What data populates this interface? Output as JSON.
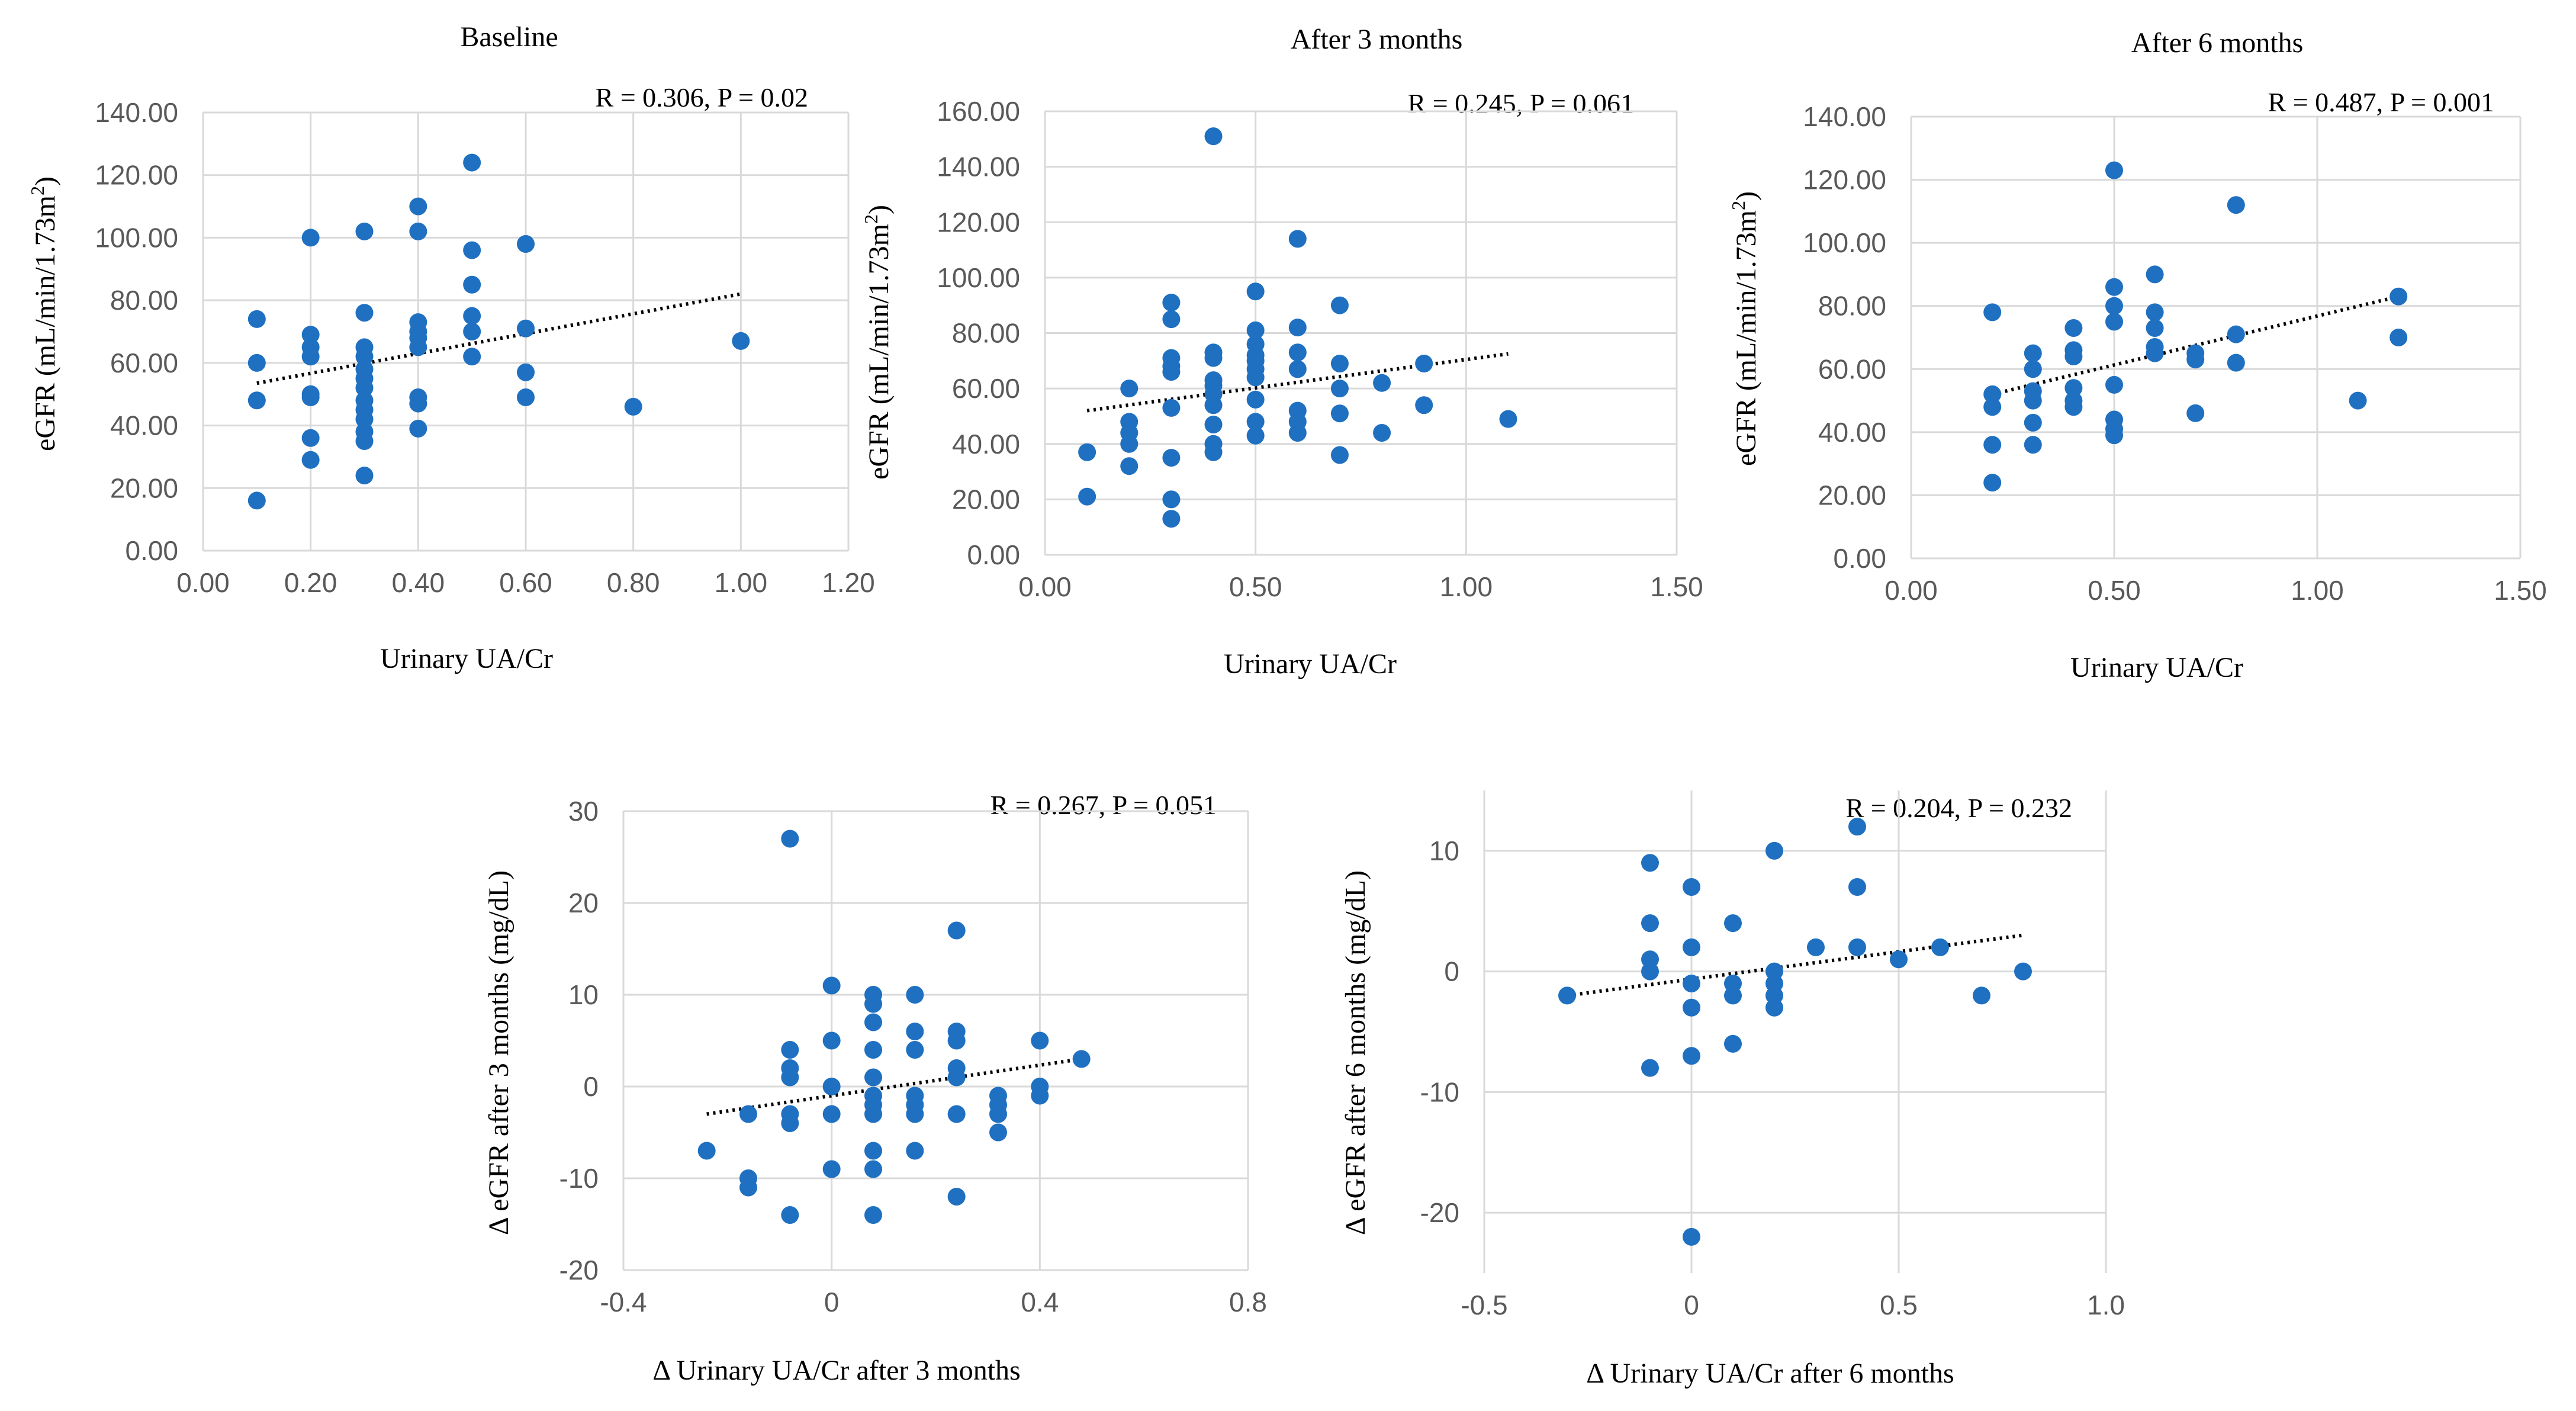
{
  "chart_data": [
    {
      "type": "scatter",
      "title": "Baseline",
      "stat": "R = 0.306, P = 0.02",
      "xlabel": "Urinary UA/Cr",
      "ylabel_main": "eGFR (mL/min/1.73m",
      "ylabel_sup": "2",
      "ylabel_end": ")",
      "xlim": [
        0,
        1.2
      ],
      "ylim": [
        0,
        140
      ],
      "xticks": [
        0,
        0.2,
        0.4,
        0.6,
        0.8,
        1.0,
        1.2
      ],
      "yticks": [
        0,
        20,
        40,
        60,
        80,
        100,
        120,
        140
      ],
      "xtick_labels": [
        "0.00",
        "0.20",
        "0.40",
        "0.60",
        "0.80",
        "1.00",
        "1.20"
      ],
      "ytick_labels": [
        "0.00",
        "20.00",
        "40.00",
        "60.00",
        "80.00",
        "100.00",
        "120.00",
        "140.00"
      ],
      "trendline": [
        [
          0.1,
          53.5
        ],
        [
          1.0,
          82
        ]
      ],
      "points": [
        [
          0.1,
          74
        ],
        [
          0.1,
          60
        ],
        [
          0.1,
          48
        ],
        [
          0.1,
          16
        ],
        [
          0.2,
          100
        ],
        [
          0.2,
          69
        ],
        [
          0.2,
          65
        ],
        [
          0.2,
          62
        ],
        [
          0.2,
          50
        ],
        [
          0.2,
          49
        ],
        [
          0.2,
          36
        ],
        [
          0.2,
          29
        ],
        [
          0.3,
          102
        ],
        [
          0.3,
          76
        ],
        [
          0.3,
          65
        ],
        [
          0.3,
          62
        ],
        [
          0.3,
          58
        ],
        [
          0.3,
          55
        ],
        [
          0.3,
          52
        ],
        [
          0.3,
          48
        ],
        [
          0.3,
          45
        ],
        [
          0.3,
          42
        ],
        [
          0.3,
          38
        ],
        [
          0.3,
          35
        ],
        [
          0.3,
          24
        ],
        [
          0.4,
          110
        ],
        [
          0.4,
          102
        ],
        [
          0.4,
          73
        ],
        [
          0.4,
          70
        ],
        [
          0.4,
          68
        ],
        [
          0.4,
          65
        ],
        [
          0.4,
          49
        ],
        [
          0.4,
          47
        ],
        [
          0.4,
          39
        ],
        [
          0.5,
          124
        ],
        [
          0.5,
          96
        ],
        [
          0.5,
          85
        ],
        [
          0.5,
          75
        ],
        [
          0.5,
          70
        ],
        [
          0.5,
          62
        ],
        [
          0.6,
          98
        ],
        [
          0.6,
          71
        ],
        [
          0.6,
          57
        ],
        [
          0.6,
          49
        ],
        [
          0.8,
          46
        ],
        [
          1.0,
          67
        ]
      ]
    },
    {
      "type": "scatter",
      "title": "After 3 months",
      "stat": "R = 0.245, P = 0.061",
      "xlabel": "Urinary UA/Cr",
      "ylabel_main": "eGFR (mL/min/1.73m",
      "ylabel_sup": "2",
      "ylabel_end": ")",
      "xlim": [
        0,
        1.5
      ],
      "ylim": [
        0,
        160
      ],
      "xticks": [
        0,
        0.5,
        1.0,
        1.5
      ],
      "yticks": [
        0,
        20,
        40,
        60,
        80,
        100,
        120,
        140,
        160
      ],
      "xtick_labels": [
        "0.00",
        "0.50",
        "1.00",
        "1.50"
      ],
      "ytick_labels": [
        "0.00",
        "20.00",
        "40.00",
        "60.00",
        "80.00",
        "100.00",
        "120.00",
        "140.00",
        "160.00"
      ],
      "trendline": [
        [
          0.1,
          52
        ],
        [
          1.1,
          72.5
        ]
      ],
      "points": [
        [
          0.1,
          37
        ],
        [
          0.1,
          21
        ],
        [
          0.2,
          60
        ],
        [
          0.2,
          48
        ],
        [
          0.2,
          44
        ],
        [
          0.2,
          40
        ],
        [
          0.2,
          32
        ],
        [
          0.3,
          91
        ],
        [
          0.3,
          85
        ],
        [
          0.3,
          71
        ],
        [
          0.3,
          68
        ],
        [
          0.3,
          66
        ],
        [
          0.3,
          53
        ],
        [
          0.3,
          35
        ],
        [
          0.3,
          20
        ],
        [
          0.3,
          13
        ],
        [
          0.4,
          151
        ],
        [
          0.4,
          73
        ],
        [
          0.4,
          71
        ],
        [
          0.4,
          63
        ],
        [
          0.4,
          61
        ],
        [
          0.4,
          58
        ],
        [
          0.4,
          54
        ],
        [
          0.4,
          47
        ],
        [
          0.4,
          40
        ],
        [
          0.4,
          37
        ],
        [
          0.5,
          95
        ],
        [
          0.5,
          81
        ],
        [
          0.5,
          76
        ],
        [
          0.5,
          72
        ],
        [
          0.5,
          70
        ],
        [
          0.5,
          67
        ],
        [
          0.5,
          64
        ],
        [
          0.5,
          56
        ],
        [
          0.5,
          48
        ],
        [
          0.5,
          43
        ],
        [
          0.6,
          114
        ],
        [
          0.6,
          82
        ],
        [
          0.6,
          73
        ],
        [
          0.6,
          67
        ],
        [
          0.6,
          52
        ],
        [
          0.6,
          48
        ],
        [
          0.6,
          44
        ],
        [
          0.7,
          90
        ],
        [
          0.7,
          69
        ],
        [
          0.7,
          60
        ],
        [
          0.7,
          51
        ],
        [
          0.7,
          36
        ],
        [
          0.8,
          62
        ],
        [
          0.8,
          44
        ],
        [
          0.9,
          69
        ],
        [
          0.9,
          54
        ],
        [
          1.1,
          49
        ]
      ]
    },
    {
      "type": "scatter",
      "title": "After 6 months",
      "stat": "R = 0.487, P = 0.001",
      "xlabel": "Urinary UA/Cr",
      "ylabel_main": "eGFR (mL/min/1.73m",
      "ylabel_sup": "2",
      "ylabel_end": ")",
      "xlim": [
        0,
        1.5
      ],
      "ylim": [
        0,
        140
      ],
      "xticks": [
        0,
        0.5,
        1.0,
        1.5
      ],
      "yticks": [
        0,
        20,
        40,
        60,
        80,
        100,
        120,
        140
      ],
      "xtick_labels": [
        "0.00",
        "0.50",
        "1.00",
        "1.50"
      ],
      "ytick_labels": [
        "0.00",
        "20.00",
        "40.00",
        "60.00",
        "80.00",
        "100.00",
        "120.00",
        "140.00"
      ],
      "trendline": [
        [
          0.2,
          52
        ],
        [
          1.2,
          83
        ]
      ],
      "points": [
        [
          0.2,
          78
        ],
        [
          0.2,
          52
        ],
        [
          0.2,
          48
        ],
        [
          0.2,
          36
        ],
        [
          0.2,
          24
        ],
        [
          0.3,
          65
        ],
        [
          0.3,
          60
        ],
        [
          0.3,
          53
        ],
        [
          0.3,
          50
        ],
        [
          0.3,
          43
        ],
        [
          0.3,
          36
        ],
        [
          0.4,
          73
        ],
        [
          0.4,
          66
        ],
        [
          0.4,
          64
        ],
        [
          0.4,
          54
        ],
        [
          0.4,
          50
        ],
        [
          0.4,
          48
        ],
        [
          0.5,
          123
        ],
        [
          0.5,
          86
        ],
        [
          0.5,
          80
        ],
        [
          0.5,
          75
        ],
        [
          0.5,
          55
        ],
        [
          0.5,
          44
        ],
        [
          0.5,
          41
        ],
        [
          0.5,
          39
        ],
        [
          0.6,
          90
        ],
        [
          0.6,
          78
        ],
        [
          0.6,
          73
        ],
        [
          0.6,
          67
        ],
        [
          0.6,
          65
        ],
        [
          0.7,
          65
        ],
        [
          0.7,
          63
        ],
        [
          0.7,
          46
        ],
        [
          0.8,
          112
        ],
        [
          0.8,
          71
        ],
        [
          0.8,
          62
        ],
        [
          1.1,
          50
        ],
        [
          1.2,
          83
        ],
        [
          1.2,
          70
        ]
      ]
    },
    {
      "type": "scatter",
      "title": "",
      "stat": "R = 0.267, P = 0.051",
      "xlabel": "Δ Urinary UA/Cr after 3 months",
      "ylabel_main": "Δ eGFR after 3 months (mg/dL)",
      "ylabel_sup": "",
      "ylabel_end": "",
      "xlim": [
        -0.4,
        0.8
      ],
      "ylim": [
        -20,
        30
      ],
      "xticks": [
        -0.4,
        0,
        0.4,
        0.8
      ],
      "yticks": [
        -20,
        -10,
        0,
        10,
        20,
        30
      ],
      "xtick_labels": [
        "-0.4",
        "0",
        "0.4",
        "0.8"
      ],
      "ytick_labels": [
        "-20",
        "-10",
        "0",
        "10",
        "20",
        "30"
      ],
      "trendline": [
        [
          -0.24,
          -3
        ],
        [
          0.48,
          3
        ]
      ],
      "points": [
        [
          -0.24,
          -7
        ],
        [
          -0.16,
          -3
        ],
        [
          -0.16,
          -10
        ],
        [
          -0.16,
          -11
        ],
        [
          -0.08,
          27
        ],
        [
          -0.08,
          4
        ],
        [
          -0.08,
          2
        ],
        [
          -0.08,
          1
        ],
        [
          -0.08,
          -3
        ],
        [
          -0.08,
          -4
        ],
        [
          -0.08,
          -14
        ],
        [
          0,
          11
        ],
        [
          0,
          5
        ],
        [
          0,
          0
        ],
        [
          0,
          -3
        ],
        [
          0,
          -9
        ],
        [
          0.08,
          10
        ],
        [
          0.08,
          9
        ],
        [
          0.08,
          7
        ],
        [
          0.08,
          4
        ],
        [
          0.08,
          1
        ],
        [
          0.08,
          -1
        ],
        [
          0.08,
          -2
        ],
        [
          0.08,
          -3
        ],
        [
          0.08,
          -7
        ],
        [
          0.08,
          -9
        ],
        [
          0.08,
          -14
        ],
        [
          0.16,
          10
        ],
        [
          0.16,
          6
        ],
        [
          0.16,
          4
        ],
        [
          0.16,
          -1
        ],
        [
          0.16,
          -2
        ],
        [
          0.16,
          -3
        ],
        [
          0.16,
          -7
        ],
        [
          0.24,
          17
        ],
        [
          0.24,
          6
        ],
        [
          0.24,
          5
        ],
        [
          0.24,
          2
        ],
        [
          0.24,
          1
        ],
        [
          0.24,
          -3
        ],
        [
          0.24,
          -12
        ],
        [
          0.32,
          -1
        ],
        [
          0.32,
          -2
        ],
        [
          0.32,
          -3
        ],
        [
          0.32,
          -5
        ],
        [
          0.4,
          5
        ],
        [
          0.4,
          0
        ],
        [
          0.4,
          -1
        ],
        [
          0.48,
          3
        ]
      ]
    },
    {
      "type": "scatter",
      "title": "",
      "stat": "R = 0.204, P = 0.232",
      "xlabel": "Δ Urinary UA/Cr after 6 months",
      "ylabel_main": "Δ eGFR after 6 months (mg/dL)",
      "ylabel_sup": "",
      "ylabel_end": "",
      "xlim": [
        -0.5,
        1.0
      ],
      "ylim": [
        -25,
        15
      ],
      "xticks": [
        -0.5,
        0,
        0.5,
        1.0
      ],
      "yticks": [
        -20,
        -10,
        0,
        10
      ],
      "xtick_labels": [
        "-0.5",
        "0",
        "0.5",
        "1.0"
      ],
      "ytick_labels": [
        "-20",
        "-10",
        "0",
        "10"
      ],
      "trendline": [
        [
          -0.3,
          -2
        ],
        [
          0.8,
          3
        ]
      ],
      "points": [
        [
          -0.3,
          -2
        ],
        [
          -0.1,
          9
        ],
        [
          -0.1,
          4
        ],
        [
          -0.1,
          1
        ],
        [
          -0.1,
          0
        ],
        [
          -0.1,
          -8
        ],
        [
          0,
          7
        ],
        [
          0,
          2
        ],
        [
          0,
          -1
        ],
        [
          0,
          -3
        ],
        [
          0,
          -7
        ],
        [
          0,
          -22
        ],
        [
          0.1,
          4
        ],
        [
          0.1,
          -1
        ],
        [
          0.1,
          -2
        ],
        [
          0.1,
          -6
        ],
        [
          0.2,
          10
        ],
        [
          0.2,
          0
        ],
        [
          0.2,
          -1
        ],
        [
          0.2,
          -2
        ],
        [
          0.2,
          -3
        ],
        [
          0.3,
          2
        ],
        [
          0.4,
          12
        ],
        [
          0.4,
          7
        ],
        [
          0.4,
          2
        ],
        [
          0.5,
          1
        ],
        [
          0.6,
          2
        ],
        [
          0.7,
          -2
        ],
        [
          0.8,
          0
        ]
      ]
    }
  ]
}
